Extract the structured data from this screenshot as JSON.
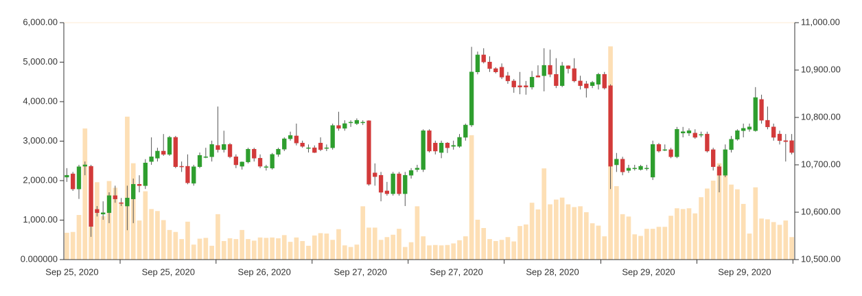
{
  "chart_data": {
    "type": "candlestick",
    "up_color": "#2e9e2e",
    "down_color": "#d23a3a",
    "wick_color": "#555555",
    "volume_color": "#fdd9a8",
    "xlim": [
      -0.5,
      120.5
    ],
    "xticks": [
      {
        "value": 0.86,
        "label": "Sep 25, 2020"
      },
      {
        "value": 16.8,
        "label": "Sep 25, 2020"
      },
      {
        "value": 32.7,
        "label": "Sep 26, 2020"
      },
      {
        "value": 48.6,
        "label": "Sep 27, 2020"
      },
      {
        "value": 64.5,
        "label": "Sep 27, 2020"
      },
      {
        "value": 80.4,
        "label": "Sep 28, 2020"
      },
      {
        "value": 96.3,
        "label": "Sep 29, 2020"
      },
      {
        "value": 112.2,
        "label": "Sep 29, 2020"
      }
    ],
    "xtick_marks": [
      8.82,
      24.7,
      40.6,
      56.5,
      72.4,
      88.4,
      104.3,
      120.2
    ],
    "ylim": [
      0,
      6000
    ],
    "yticks": [
      {
        "value": 0,
        "label": "0.000000"
      },
      {
        "value": 1000,
        "label": "1,000.00"
      },
      {
        "value": 2000,
        "label": "2,000.00"
      },
      {
        "value": 3000,
        "label": "3,000.00"
      },
      {
        "value": 4000,
        "label": "4,000.00"
      },
      {
        "value": 5000,
        "label": "5,000.00"
      },
      {
        "value": 6000,
        "label": "6,000.00"
      }
    ],
    "y2lim": [
      10500,
      11000
    ],
    "y2ticks": [
      {
        "value": 10500,
        "label": "10,500.00"
      },
      {
        "value": 10600,
        "label": "10,600.00"
      },
      {
        "value": 10700,
        "label": "10,700.00"
      },
      {
        "value": 10800,
        "label": "10,800.00"
      },
      {
        "value": 10900,
        "label": "10,900.00"
      },
      {
        "value": 11000,
        "label": "11,000.00"
      }
    ],
    "ohlc": [
      [
        10674,
        10693,
        10664,
        10678
      ],
      [
        10681,
        10685,
        10645,
        10649
      ],
      [
        10649,
        10700,
        10628,
        10696
      ],
      [
        10697,
        10707,
        10678,
        10700
      ],
      [
        10697,
        10700,
        10548,
        10570
      ],
      [
        10606,
        10613,
        10591,
        10599
      ],
      [
        10596,
        10623,
        10584,
        10599
      ],
      [
        10599,
        10642,
        10577,
        10635
      ],
      [
        10635,
        10656,
        10620,
        10628
      ],
      [
        10620,
        10630,
        10613,
        10619
      ],
      [
        10613,
        10656,
        10562,
        10630
      ],
      [
        10628,
        10671,
        10577,
        10659
      ],
      [
        10659,
        10678,
        10642,
        10656
      ],
      [
        10656,
        10712,
        10649,
        10704
      ],
      [
        10707,
        10758,
        10700,
        10717
      ],
      [
        10714,
        10736,
        10707,
        10729
      ],
      [
        10729,
        10765,
        10719,
        10722
      ],
      [
        10722,
        10761,
        10719,
        10758
      ],
      [
        10758,
        10761,
        10693,
        10696
      ],
      [
        10697,
        10707,
        10685,
        10696
      ],
      [
        10697,
        10722,
        10659,
        10662
      ],
      [
        10661,
        10700,
        10656,
        10696
      ],
      [
        10696,
        10726,
        10693,
        10720
      ],
      [
        10717,
        10736,
        10714,
        10717
      ],
      [
        10717,
        10751,
        10707,
        10743
      ],
      [
        10741,
        10823,
        10726,
        10732
      ],
      [
        10732,
        10772,
        10726,
        10743
      ],
      [
        10743,
        10746,
        10714,
        10717
      ],
      [
        10717,
        10722,
        10693,
        10700
      ],
      [
        10697,
        10707,
        10690,
        10706
      ],
      [
        10706,
        10736,
        10703,
        10733
      ],
      [
        10733,
        10736,
        10707,
        10714
      ],
      [
        10714,
        10722,
        10693,
        10697
      ],
      [
        10696,
        10700,
        10688,
        10696
      ],
      [
        10693,
        10725,
        10690,
        10722
      ],
      [
        10722,
        10736,
        10717,
        10733
      ],
      [
        10733,
        10758,
        10729,
        10755
      ],
      [
        10755,
        10770,
        10751,
        10762
      ],
      [
        10761,
        10787,
        10741,
        10746
      ],
      [
        10746,
        10751,
        10736,
        10739
      ],
      [
        10736,
        10743,
        10726,
        10736
      ],
      [
        10736,
        10741,
        10725,
        10726
      ],
      [
        10746,
        10758,
        10729,
        10732
      ],
      [
        10736,
        10743,
        10729,
        10736
      ],
      [
        10736,
        10787,
        10732,
        10783
      ],
      [
        10783,
        10812,
        10772,
        10777
      ],
      [
        10777,
        10794,
        10772,
        10787
      ],
      [
        10790,
        10794,
        10780,
        10790
      ],
      [
        10787,
        10798,
        10784,
        10794
      ],
      [
        10790,
        10794,
        10784,
        10790
      ],
      [
        10793,
        10794,
        10656,
        10659
      ],
      [
        10683,
        10703,
        10656,
        10675
      ],
      [
        10678,
        10685,
        10623,
        10642
      ],
      [
        10645,
        10664,
        10635,
        10639
      ],
      [
        10639,
        10685,
        10635,
        10681
      ],
      [
        10681,
        10685,
        10635,
        10639
      ],
      [
        10639,
        10685,
        10613,
        10678
      ],
      [
        10678,
        10693,
        10671,
        10688
      ],
      [
        10690,
        10700,
        10685,
        10693
      ],
      [
        10690,
        10775,
        10685,
        10772
      ],
      [
        10772,
        10775,
        10726,
        10729
      ],
      [
        10746,
        10751,
        10722,
        10729
      ],
      [
        10726,
        10751,
        10714,
        10746
      ],
      [
        10746,
        10748,
        10725,
        10736
      ],
      [
        10739,
        10751,
        10732,
        10741
      ],
      [
        10739,
        10765,
        10736,
        10758
      ],
      [
        10758,
        10787,
        10751,
        10784
      ],
      [
        10784,
        10949,
        10780,
        10896
      ],
      [
        10896,
        10939,
        10891,
        10932
      ],
      [
        10932,
        10946,
        10914,
        10917
      ],
      [
        10917,
        10929,
        10896,
        10903
      ],
      [
        10903,
        10906,
        10893,
        10896
      ],
      [
        10906,
        10914,
        10881,
        10885
      ],
      [
        10888,
        10896,
        10871,
        10877
      ],
      [
        10877,
        10881,
        10852,
        10864
      ],
      [
        10867,
        10896,
        10849,
        10864
      ],
      [
        10867,
        10877,
        10848,
        10864
      ],
      [
        10864,
        10898,
        10859,
        10885
      ],
      [
        10888,
        10910,
        10885,
        10885
      ],
      [
        10888,
        10946,
        10855,
        10910
      ],
      [
        10910,
        10943,
        10885,
        10891
      ],
      [
        10891,
        10925,
        10862,
        10867
      ],
      [
        10867,
        10917,
        10864,
        10909
      ],
      [
        10909,
        10910,
        10893,
        10903
      ],
      [
        10903,
        10925,
        10874,
        10877
      ],
      [
        10877,
        10888,
        10859,
        10867
      ],
      [
        10871,
        10877,
        10842,
        10862
      ],
      [
        10867,
        10877,
        10862,
        10874
      ],
      [
        10870,
        10894,
        10859,
        10891
      ],
      [
        10891,
        10896,
        10859,
        10862
      ],
      [
        10867,
        10870,
        10649,
        10697
      ],
      [
        10700,
        10725,
        10685,
        10712
      ],
      [
        10712,
        10717,
        10678,
        10685
      ],
      [
        10688,
        10700,
        10683,
        10693
      ],
      [
        10693,
        10700,
        10688,
        10693
      ],
      [
        10690,
        10700,
        10688,
        10697
      ],
      [
        10693,
        10700,
        10688,
        10693
      ],
      [
        10674,
        10751,
        10668,
        10743
      ],
      [
        10743,
        10746,
        10726,
        10729
      ],
      [
        10732,
        10743,
        10729,
        10732
      ],
      [
        10732,
        10736,
        10714,
        10717
      ],
      [
        10717,
        10780,
        10714,
        10775
      ],
      [
        10767,
        10780,
        10758,
        10770
      ],
      [
        10767,
        10777,
        10761,
        10772
      ],
      [
        10767,
        10775,
        10755,
        10758
      ],
      [
        10764,
        10770,
        10758,
        10764
      ],
      [
        10765,
        10770,
        10726,
        10729
      ],
      [
        10732,
        10736,
        10688,
        10696
      ],
      [
        10696,
        10700,
        10642,
        10678
      ],
      [
        10678,
        10743,
        10674,
        10732
      ],
      [
        10732,
        10761,
        10726,
        10754
      ],
      [
        10754,
        10775,
        10751,
        10772
      ],
      [
        10772,
        10787,
        10758,
        10777
      ],
      [
        10775,
        10787,
        10770,
        10780
      ],
      [
        10772,
        10864,
        10770,
        10842
      ],
      [
        10838,
        10848,
        10787,
        10794
      ],
      [
        10794,
        10823,
        10775,
        10780
      ],
      [
        10780,
        10787,
        10751,
        10758
      ],
      [
        10765,
        10772,
        10743,
        10751
      ],
      [
        10751,
        10765,
        10707,
        10749
      ],
      [
        10751,
        10765,
        10722,
        10726
      ]
    ],
    "volume": [
      680,
      700,
      1130,
      3320,
      2350,
      1960,
      1100,
      1990,
      1820,
      1450,
      3620,
      2440,
      990,
      1730,
      1280,
      1230,
      1000,
      750,
      700,
      520,
      960,
      380,
      530,
      550,
      350,
      1150,
      470,
      540,
      520,
      750,
      520,
      480,
      560,
      550,
      560,
      540,
      620,
      450,
      560,
      470,
      350,
      610,
      670,
      660,
      500,
      770,
      360,
      320,
      380,
      1350,
      810,
      810,
      500,
      570,
      630,
      780,
      320,
      440,
      1350,
      590,
      360,
      370,
      360,
      370,
      410,
      490,
      590,
      3150,
      1010,
      800,
      520,
      470,
      500,
      570,
      460,
      850,
      890,
      1440,
      1270,
      2310,
      1400,
      1520,
      1570,
      1400,
      1330,
      1350,
      1200,
      920,
      860,
      590,
      5400,
      1860,
      1150,
      1090,
      640,
      600,
      780,
      780,
      830,
      830,
      1110,
      1300,
      1280,
      1300,
      1170,
      1580,
      1800,
      2000,
      2440,
      2270,
      1900,
      1780,
      1410,
      660,
      1830,
      1040,
      1020,
      950,
      880,
      990,
      570
    ]
  }
}
